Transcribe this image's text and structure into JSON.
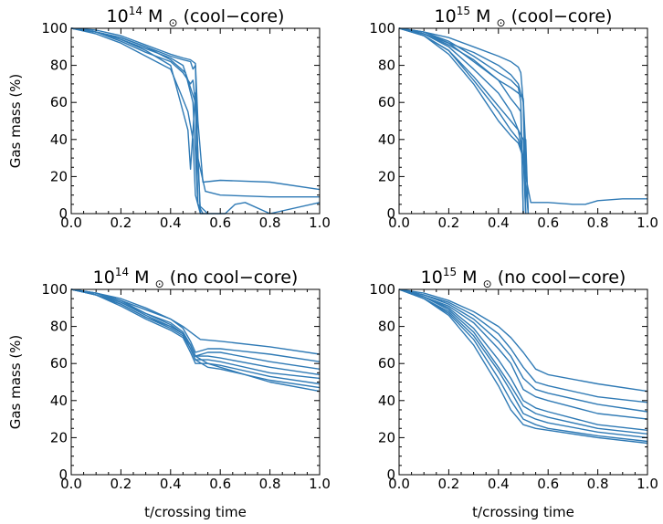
{
  "colors": {
    "series": "#2f7ab5",
    "axis": "#000000"
  },
  "chart_data": [
    {
      "type": "line",
      "title_mass": "10",
      "title_exp": "14",
      "title_unit": "M",
      "title_sub": "⊙",
      "title_tag": "(cool−core)",
      "xlabel": "",
      "ylabel": "Gas mass (%)",
      "xlim": [
        0.0,
        1.0
      ],
      "ylim": [
        0,
        100
      ],
      "xticks": [
        "0.0",
        "0.2",
        "0.4",
        "0.6",
        "0.8",
        "1.0"
      ],
      "yticks": [
        "0",
        "20",
        "40",
        "60",
        "80",
        "100"
      ],
      "grid": false,
      "series": [
        {
          "x": [
            0,
            0.1,
            0.2,
            0.3,
            0.4,
            0.45,
            0.48,
            0.49,
            0.5,
            0.51,
            0.53,
            0.6,
            0.8,
            1.0
          ],
          "y": [
            100,
            99,
            96,
            91,
            86,
            84,
            83,
            82,
            81,
            50,
            17,
            18,
            17,
            13
          ]
        },
        {
          "x": [
            0,
            0.1,
            0.2,
            0.3,
            0.4,
            0.45,
            0.48,
            0.49,
            0.5,
            0.51,
            0.54,
            0.6,
            0.8,
            1.0
          ],
          "y": [
            100,
            98,
            95,
            90,
            85,
            83,
            82,
            78,
            80,
            30,
            12,
            10,
            9,
            9
          ]
        },
        {
          "x": [
            0,
            0.1,
            0.2,
            0.3,
            0.4,
            0.45,
            0.47,
            0.48,
            0.5,
            0.52,
            0.58,
            0.62,
            0.66,
            0.7,
            0.8,
            1.0
          ],
          "y": [
            100,
            98,
            94,
            88,
            80,
            55,
            45,
            24,
            65,
            0,
            0,
            0,
            5,
            6,
            0,
            6
          ]
        },
        {
          "x": [
            0,
            0.1,
            0.2,
            0.3,
            0.4,
            0.45,
            0.48,
            0.49,
            0.5,
            0.51,
            0.53
          ],
          "y": [
            100,
            98,
            93,
            87,
            82,
            76,
            70,
            72,
            60,
            5,
            0
          ]
        },
        {
          "x": [
            0,
            0.1,
            0.2,
            0.3,
            0.4,
            0.44,
            0.47,
            0.49,
            0.5,
            0.52
          ],
          "y": [
            100,
            97,
            92,
            85,
            78,
            65,
            55,
            40,
            10,
            0
          ]
        },
        {
          "x": [
            0,
            0.1,
            0.2,
            0.3,
            0.4,
            0.46,
            0.49,
            0.51,
            0.55
          ],
          "y": [
            100,
            98,
            95,
            90,
            83,
            76,
            60,
            5,
            0
          ]
        },
        {
          "x": [
            0,
            0.1,
            0.2,
            0.3,
            0.4,
            0.45,
            0.5,
            0.52
          ],
          "y": [
            100,
            98,
            94,
            89,
            84,
            80,
            60,
            0
          ]
        }
      ]
    },
    {
      "type": "line",
      "title_mass": "10",
      "title_exp": "15",
      "title_unit": "M",
      "title_sub": "⊙",
      "title_tag": "(cool−core)",
      "xlabel": "",
      "ylabel": "",
      "xlim": [
        0.0,
        1.0
      ],
      "ylim": [
        0,
        100
      ],
      "xticks": [
        "0.0",
        "0.2",
        "0.4",
        "0.6",
        "0.8",
        "1.0"
      ],
      "yticks": [
        "0",
        "20",
        "40",
        "60",
        "80",
        "100"
      ],
      "grid": false,
      "series": [
        {
          "x": [
            0,
            0.1,
            0.2,
            0.3,
            0.4,
            0.45,
            0.48,
            0.49,
            0.5,
            0.51,
            0.53,
            0.6,
            0.7,
            0.75,
            0.8,
            0.9,
            1.0
          ],
          "y": [
            100,
            97,
            92,
            87,
            80,
            75,
            70,
            65,
            60,
            20,
            6,
            6,
            5,
            5,
            7,
            8,
            8
          ]
        },
        {
          "x": [
            0,
            0.1,
            0.2,
            0.3,
            0.4,
            0.45,
            0.48,
            0.5,
            0.51,
            0.52
          ],
          "y": [
            100,
            98,
            92,
            82,
            72,
            68,
            65,
            62,
            35,
            0
          ]
        },
        {
          "x": [
            0,
            0.1,
            0.2,
            0.3,
            0.4,
            0.45,
            0.48,
            0.5,
            0.51,
            0.52
          ],
          "y": [
            100,
            97,
            90,
            78,
            65,
            55,
            45,
            30,
            40,
            0
          ]
        },
        {
          "x": [
            0,
            0.1,
            0.2,
            0.3,
            0.4,
            0.45,
            0.48,
            0.5,
            0.51,
            0.52
          ],
          "y": [
            100,
            96,
            88,
            72,
            55,
            45,
            40,
            30,
            15,
            0
          ]
        },
        {
          "x": [
            0,
            0.1,
            0.2,
            0.3,
            0.35,
            0.4,
            0.45,
            0.48,
            0.5,
            0.51
          ],
          "y": [
            100,
            96,
            86,
            70,
            60,
            50,
            42,
            38,
            30,
            0
          ]
        },
        {
          "x": [
            0,
            0.1,
            0.2,
            0.3,
            0.35,
            0.4,
            0.45,
            0.48,
            0.5,
            0.51
          ],
          "y": [
            100,
            96,
            88,
            74,
            66,
            58,
            50,
            45,
            40,
            0
          ]
        },
        {
          "x": [
            0,
            0.1,
            0.2,
            0.3,
            0.4,
            0.45,
            0.48,
            0.49,
            0.5
          ],
          "y": [
            100,
            98,
            93,
            85,
            76,
            72,
            68,
            60,
            0
          ]
        },
        {
          "x": [
            0,
            0.1,
            0.2,
            0.3,
            0.4,
            0.45,
            0.48,
            0.49,
            0.5
          ],
          "y": [
            100,
            97,
            91,
            83,
            72,
            62,
            57,
            55,
            0
          ]
        },
        {
          "x": [
            0,
            0.1,
            0.2,
            0.3,
            0.4,
            0.45,
            0.48,
            0.49,
            0.5,
            0.51
          ],
          "y": [
            100,
            98,
            95,
            90,
            85,
            82,
            79,
            76,
            60,
            0
          ]
        }
      ]
    },
    {
      "type": "line",
      "title_mass": "10",
      "title_exp": "14",
      "title_unit": "M",
      "title_sub": "⊙",
      "title_tag": "(no cool−core)",
      "xlabel": "t/crossing time",
      "ylabel": "Gas mass (%)",
      "xlim": [
        0.0,
        1.0
      ],
      "ylim": [
        0,
        100
      ],
      "xticks": [
        "0.0",
        "0.2",
        "0.4",
        "0.6",
        "0.8",
        "1.0"
      ],
      "yticks": [
        "0",
        "20",
        "40",
        "60",
        "80",
        "100"
      ],
      "grid": false,
      "series": [
        {
          "x": [
            0,
            0.1,
            0.2,
            0.3,
            0.4,
            0.45,
            0.5,
            0.52,
            0.6,
            0.8,
            1.0
          ],
          "y": [
            100,
            98,
            94,
            89,
            84,
            80,
            75,
            73,
            72,
            69,
            65
          ]
        },
        {
          "x": [
            0,
            0.1,
            0.2,
            0.3,
            0.4,
            0.45,
            0.48,
            0.5,
            0.55,
            0.6,
            0.8,
            1.0
          ],
          "y": [
            100,
            98,
            95,
            90,
            84,
            79,
            72,
            66,
            68,
            68,
            65,
            61
          ]
        },
        {
          "x": [
            0,
            0.1,
            0.2,
            0.3,
            0.4,
            0.45,
            0.48,
            0.5,
            0.55,
            0.6,
            0.8,
            1.0
          ],
          "y": [
            100,
            97,
            93,
            87,
            82,
            77,
            70,
            64,
            66,
            66,
            61,
            57
          ]
        },
        {
          "x": [
            0,
            0.1,
            0.2,
            0.3,
            0.4,
            0.45,
            0.48,
            0.5,
            0.55,
            0.6,
            0.8,
            1.0
          ],
          "y": [
            100,
            97,
            92,
            85,
            80,
            76,
            70,
            64,
            64,
            63,
            58,
            54
          ]
        },
        {
          "x": [
            0,
            0.1,
            0.2,
            0.3,
            0.4,
            0.45,
            0.48,
            0.5,
            0.55,
            0.6,
            0.8,
            1.0
          ],
          "y": [
            100,
            98,
            93,
            86,
            80,
            76,
            68,
            62,
            62,
            61,
            55,
            52
          ]
        },
        {
          "x": [
            0,
            0.1,
            0.2,
            0.3,
            0.4,
            0.45,
            0.48,
            0.5,
            0.55,
            0.6,
            0.8,
            1.0
          ],
          "y": [
            100,
            97,
            91,
            84,
            78,
            74,
            66,
            60,
            60,
            59,
            53,
            49
          ]
        },
        {
          "x": [
            0,
            0.1,
            0.2,
            0.3,
            0.4,
            0.45,
            0.48,
            0.5,
            0.55,
            0.6,
            0.8,
            1.0
          ],
          "y": [
            100,
            97,
            92,
            85,
            79,
            75,
            68,
            62,
            58,
            57,
            51,
            47
          ]
        },
        {
          "x": [
            0,
            0.1,
            0.2,
            0.3,
            0.4,
            0.45,
            0.48,
            0.5,
            0.55,
            0.6,
            0.8,
            1.0
          ],
          "y": [
            100,
            98,
            94,
            87,
            81,
            76,
            70,
            64,
            60,
            58,
            50,
            45
          ]
        }
      ]
    },
    {
      "type": "line",
      "title_mass": "10",
      "title_exp": "15",
      "title_unit": "M",
      "title_sub": "⊙",
      "title_tag": "(no cool−core)",
      "xlabel": "t/crossing time",
      "ylabel": "",
      "xlim": [
        0.0,
        1.0
      ],
      "ylim": [
        0,
        100
      ],
      "xticks": [
        "0.0",
        "0.2",
        "0.4",
        "0.6",
        "0.8",
        "1.0"
      ],
      "yticks": [
        "0",
        "20",
        "40",
        "60",
        "80",
        "100"
      ],
      "grid": false,
      "series": [
        {
          "x": [
            0,
            0.1,
            0.2,
            0.3,
            0.4,
            0.45,
            0.5,
            0.55,
            0.6,
            0.8,
            1.0
          ],
          "y": [
            100,
            98,
            94,
            88,
            80,
            74,
            66,
            57,
            54,
            49,
            45
          ]
        },
        {
          "x": [
            0,
            0.1,
            0.2,
            0.3,
            0.4,
            0.45,
            0.5,
            0.55,
            0.6,
            0.8,
            1.0
          ],
          "y": [
            100,
            97,
            93,
            86,
            76,
            68,
            58,
            50,
            48,
            42,
            39
          ]
        },
        {
          "x": [
            0,
            0.1,
            0.2,
            0.3,
            0.4,
            0.45,
            0.5,
            0.55,
            0.6,
            0.8,
            1.0
          ],
          "y": [
            100,
            97,
            92,
            84,
            72,
            64,
            52,
            46,
            44,
            38,
            34
          ]
        },
        {
          "x": [
            0,
            0.1,
            0.2,
            0.3,
            0.4,
            0.45,
            0.5,
            0.55,
            0.6,
            0.8,
            1.0
          ],
          "y": [
            100,
            96,
            91,
            82,
            68,
            60,
            46,
            42,
            40,
            33,
            30
          ]
        },
        {
          "x": [
            0,
            0.1,
            0.2,
            0.3,
            0.4,
            0.45,
            0.5,
            0.55,
            0.6,
            0.8,
            1.0
          ],
          "y": [
            100,
            96,
            90,
            79,
            62,
            52,
            40,
            36,
            34,
            27,
            24
          ]
        },
        {
          "x": [
            0,
            0.1,
            0.2,
            0.3,
            0.4,
            0.45,
            0.5,
            0.55,
            0.6,
            0.8,
            1.0
          ],
          "y": [
            100,
            96,
            89,
            77,
            58,
            48,
            37,
            33,
            31,
            25,
            22
          ]
        },
        {
          "x": [
            0,
            0.1,
            0.2,
            0.3,
            0.4,
            0.45,
            0.5,
            0.55,
            0.6,
            0.8,
            1.0
          ],
          "y": [
            100,
            95,
            88,
            75,
            56,
            45,
            33,
            30,
            28,
            23,
            20
          ]
        },
        {
          "x": [
            0,
            0.1,
            0.2,
            0.3,
            0.4,
            0.45,
            0.5,
            0.55,
            0.6,
            0.8,
            1.0
          ],
          "y": [
            100,
            95,
            87,
            73,
            52,
            40,
            30,
            27,
            25,
            21,
            18
          ]
        },
        {
          "x": [
            0,
            0.1,
            0.2,
            0.3,
            0.4,
            0.45,
            0.5,
            0.55,
            0.6,
            0.8,
            1.0
          ],
          "y": [
            100,
            95,
            86,
            70,
            48,
            35,
            27,
            25,
            24,
            20,
            17
          ]
        }
      ]
    }
  ]
}
